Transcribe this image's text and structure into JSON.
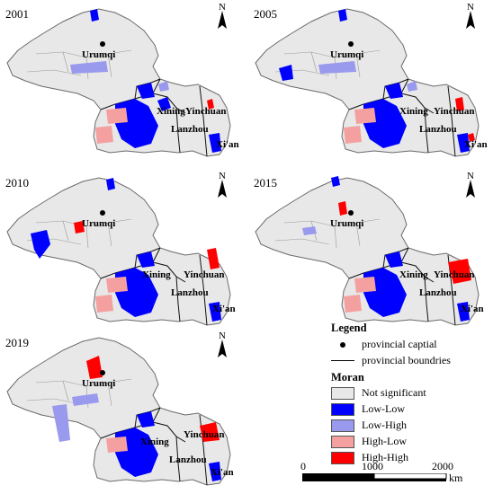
{
  "panels": [
    {
      "year": "2001"
    },
    {
      "year": "2005"
    },
    {
      "year": "2010"
    },
    {
      "year": "2015"
    },
    {
      "year": "2019"
    }
  ],
  "map_labels": {
    "urumqi": "Urumqi",
    "xining": "Xining",
    "yinchuan": "Yinchuan",
    "lanzhou": "Lanzhou",
    "xian": "Xi'an"
  },
  "compass_letter": "N",
  "legend": {
    "title": "Legend",
    "capital_label": "provincial captial",
    "boundary_label": "provincial boundries",
    "moran_title": "Moran",
    "classes": [
      {
        "label": "Not significant",
        "color": "#e8e8e8"
      },
      {
        "label": "Low-Low",
        "color": "#0000ff"
      },
      {
        "label": "Low-High",
        "color": "#9999ee"
      },
      {
        "label": "High-Low",
        "color": "#f4a0a0"
      },
      {
        "label": "High-High",
        "color": "#ff0000"
      }
    ]
  },
  "scale": {
    "ticks": [
      "0",
      "1000",
      "2000"
    ],
    "unit": "km"
  }
}
